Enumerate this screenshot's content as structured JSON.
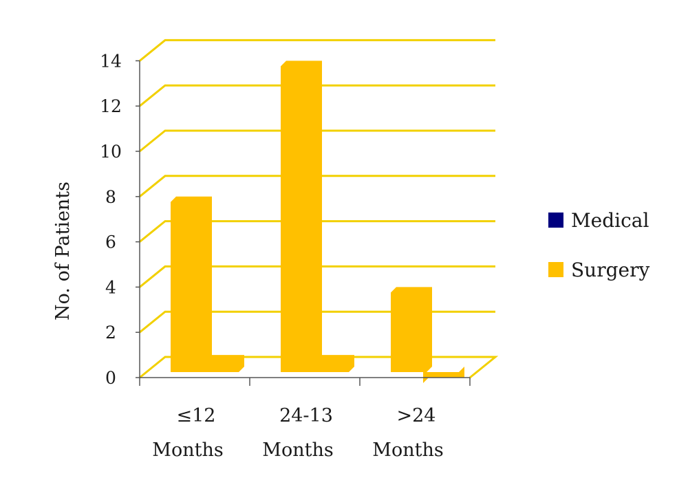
{
  "chart_data": {
    "type": "bar",
    "style": "3d-clustered",
    "categories": [
      [
        "≤12",
        "Months"
      ],
      [
        "24-13",
        "Months"
      ],
      [
        ">24",
        "Months"
      ]
    ],
    "series": [
      {
        "name": "Medical",
        "color": "#00007f",
        "values": [
          8,
          14,
          4
        ]
      },
      {
        "name": "Surgery",
        "color": "#ffc000",
        "values": [
          1,
          1,
          0
        ]
      }
    ],
    "ylabel": "No. of Patients",
    "xlabel": "",
    "ylim": [
      0,
      14
    ],
    "yticks": [
      0,
      2,
      4,
      6,
      8,
      10,
      12,
      14
    ],
    "grid": true,
    "grid_color": "#f2d000",
    "bar_face_color": "#ffc000",
    "legend_position": "right"
  }
}
